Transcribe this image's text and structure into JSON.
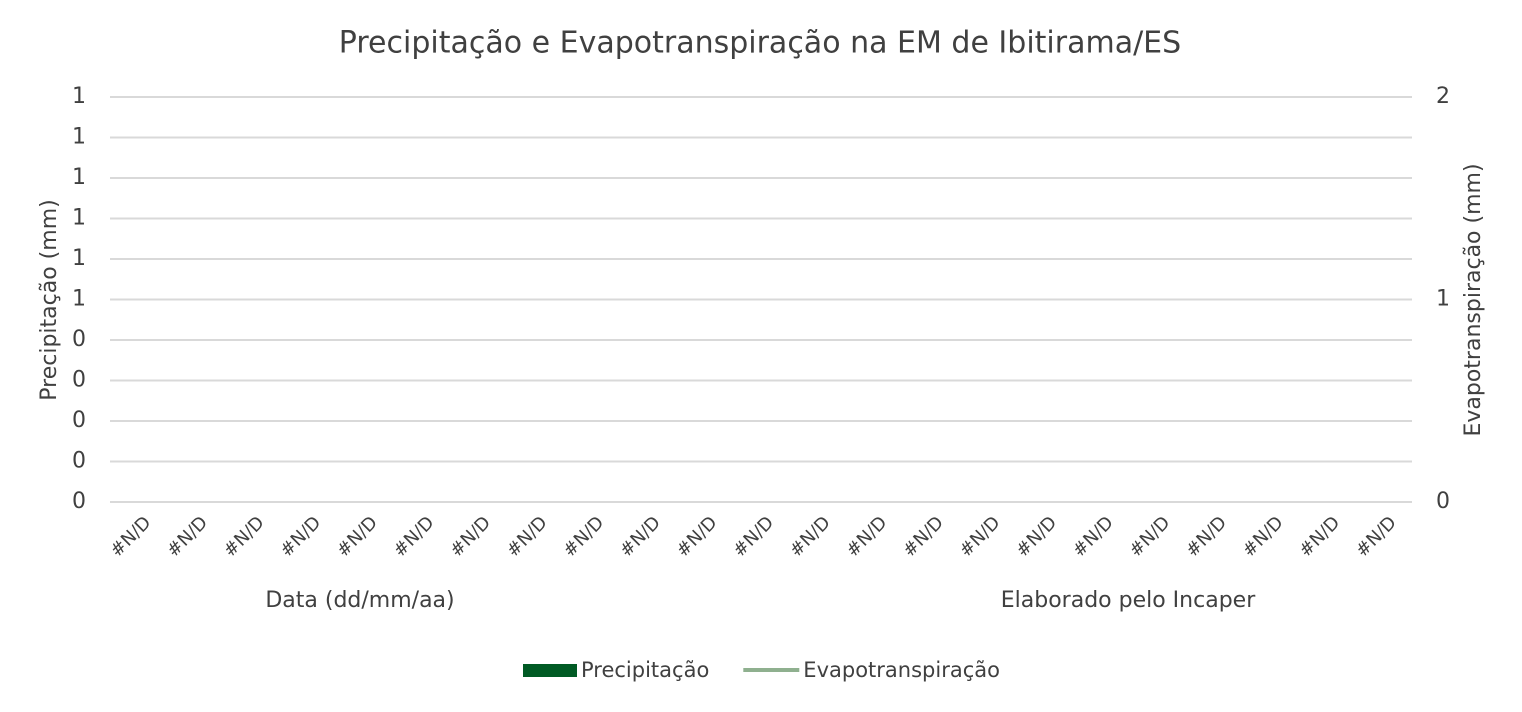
{
  "chart_data": {
    "type": "bar_line",
    "title": "Precipitação e Evapotranspiração na EM de Ibitirama/ES",
    "x_label": "Data (dd/mm/aa)",
    "y_label": "Precipitação (mm)",
    "y2_label": "Evapotranspiração (mm)",
    "annotation": "Elaborado pelo Incaper",
    "categories": [
      "#N/D",
      "#N/D",
      "#N/D",
      "#N/D",
      "#N/D",
      "#N/D",
      "#N/D",
      "#N/D",
      "#N/D",
      "#N/D",
      "#N/D",
      "#N/D",
      "#N/D",
      "#N/D",
      "#N/D",
      "#N/D",
      "#N/D",
      "#N/D",
      "#N/D",
      "#N/D",
      "#N/D",
      "#N/D",
      "#N/D"
    ],
    "series": [
      {
        "name": "Precipitação",
        "color": "#005a24",
        "type": "bar",
        "values": [
          null,
          null,
          null,
          null,
          null,
          null,
          null,
          null,
          null,
          null,
          null,
          null,
          null,
          null,
          null,
          null,
          null,
          null,
          null,
          null,
          null,
          null,
          null
        ]
      },
      {
        "name": "Evapotranspiração",
        "color": "#8fb08f",
        "type": "line",
        "axis": "y2",
        "values": [
          null,
          null,
          null,
          null,
          null,
          null,
          null,
          null,
          null,
          null,
          null,
          null,
          null,
          null,
          null,
          null,
          null,
          null,
          null,
          null,
          null,
          null,
          null
        ]
      }
    ],
    "ylim": [
      0,
      1
    ],
    "yticks": [
      0,
      {
        "value": 0.1,
        "label": "0"
      },
      {
        "value": 0.2,
        "label": "0"
      },
      {
        "value": 0.3,
        "label": "0"
      },
      {
        "value": 0.4,
        "label": "0"
      },
      {
        "value": 0.5,
        "label": "1"
      },
      {
        "value": 0.6,
        "label": "1"
      },
      {
        "value": 0.7,
        "label": "1"
      },
      {
        "value": 0.8,
        "label": "1"
      },
      {
        "value": 0.9,
        "label": "1"
      },
      1
    ],
    "y2lim": [
      0,
      2
    ],
    "y2ticks": [
      0,
      1,
      2
    ],
    "grid": true,
    "legend": "bottom"
  }
}
